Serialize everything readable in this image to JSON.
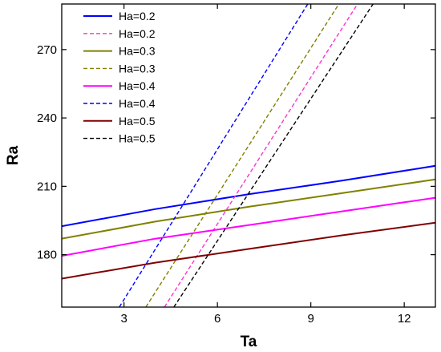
{
  "chart_data": {
    "type": "line",
    "xlabel": "Ta",
    "ylabel": "Ra",
    "xlim": [
      1.0,
      13.0
    ],
    "ylim": [
      157,
      290
    ],
    "xticks": [
      3,
      6,
      9,
      12
    ],
    "yticks": [
      180,
      210,
      240,
      270
    ],
    "xtick_labels": [
      "3",
      "6",
      "9",
      "12"
    ],
    "ytick_labels": [
      "180",
      "210",
      "240",
      "270"
    ],
    "grid": false,
    "legend_position": "top-left",
    "series": [
      {
        "name": "Ha=0.2",
        "color": "#0000ff",
        "dash": "solid",
        "x": [
          1.0,
          4.0,
          7.0,
          10.0,
          13.0
        ],
        "y": [
          192.5,
          200.0,
          206.5,
          212.5,
          219.0
        ]
      },
      {
        "name": "Ha=0.2",
        "color": "#ff33cc",
        "dash": "dashed",
        "x": [
          4.3,
          10.5
        ],
        "y": [
          157,
          290
        ]
      },
      {
        "name": "Ha=0.3",
        "color": "#808000",
        "dash": "solid",
        "x": [
          1.0,
          4.0,
          7.0,
          10.0,
          13.0
        ],
        "y": [
          187.0,
          194.5,
          201.0,
          207.0,
          213.0
        ]
      },
      {
        "name": "Ha=0.3",
        "color": "#808000",
        "dash": "dashed",
        "x": [
          3.7,
          9.9
        ],
        "y": [
          157,
          290
        ]
      },
      {
        "name": "Ha=0.4",
        "color": "#ff00ff",
        "dash": "solid",
        "x": [
          1.0,
          4.0,
          7.0,
          10.0,
          13.0
        ],
        "y": [
          179.5,
          187.0,
          193.0,
          199.0,
          205.0
        ]
      },
      {
        "name": "Ha=0.4",
        "color": "#0000ff",
        "dash": "dashed",
        "x": [
          2.85,
          8.9
        ],
        "y": [
          157,
          290
        ]
      },
      {
        "name": "Ha=0.5",
        "color": "#800000",
        "dash": "solid",
        "x": [
          1.0,
          4.0,
          7.0,
          10.0,
          13.0
        ],
        "y": [
          169.5,
          176.5,
          182.5,
          188.5,
          194.0
        ]
      },
      {
        "name": "Ha=0.5",
        "color": "#000000",
        "dash": "dashed",
        "x": [
          4.6,
          11.0
        ],
        "y": [
          157,
          290
        ]
      }
    ]
  }
}
